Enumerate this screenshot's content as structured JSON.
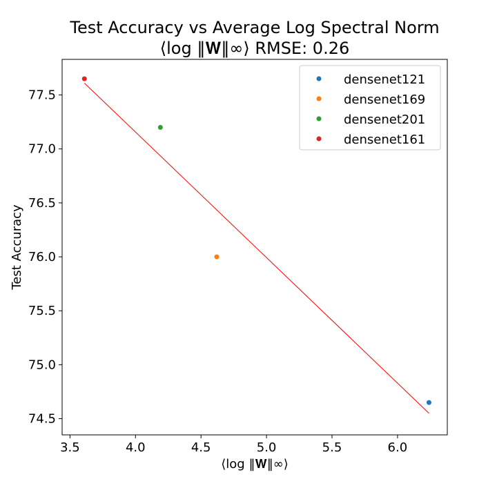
{
  "chart_data": {
    "type": "scatter",
    "title": "Test Accuracy vs Average Log Spectral Norm",
    "subtitle": "⟨log ‖𝐖‖∞⟩ RMSE: 0.26",
    "xlabel": "⟨log ‖𝐖‖∞⟩",
    "ylabel": "Test Accuracy",
    "xlim": [
      3.44,
      6.38
    ],
    "ylim": [
      74.35,
      77.83
    ],
    "xticks": [
      3.5,
      4.0,
      4.5,
      5.0,
      5.5,
      6.0
    ],
    "xtick_labels": [
      "3.5",
      "4.0",
      "4.5",
      "5.0",
      "5.5",
      "6.0"
    ],
    "yticks": [
      74.5,
      75.0,
      75.5,
      76.0,
      76.5,
      77.0,
      77.5
    ],
    "ytick_labels": [
      "74.5",
      "75.0",
      "75.5",
      "76.0",
      "76.5",
      "77.0",
      "77.5"
    ],
    "grid": false,
    "legend_position": "top-right",
    "series": [
      {
        "name": "densenet121",
        "color": "#1f77b4",
        "x": 6.24,
        "y": 74.65
      },
      {
        "name": "densenet169",
        "color": "#ff7f0e",
        "x": 4.62,
        "y": 76.0
      },
      {
        "name": "densenet201",
        "color": "#2ca02c",
        "x": 4.19,
        "y": 77.2
      },
      {
        "name": "densenet161",
        "color": "#d62728",
        "x": 3.61,
        "y": 77.65
      }
    ],
    "fit_line": {
      "color": "#ff0000",
      "x": [
        3.61,
        6.24
      ],
      "y": [
        77.61,
        74.55
      ]
    }
  }
}
